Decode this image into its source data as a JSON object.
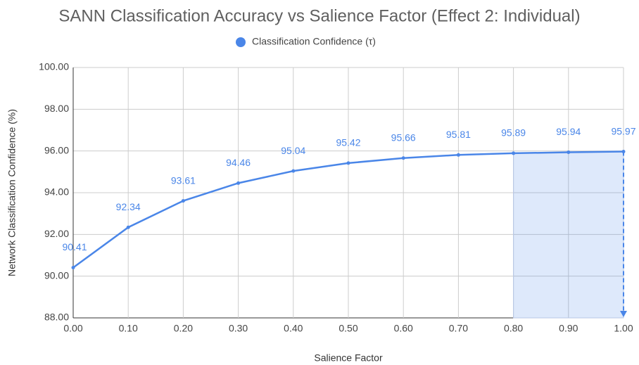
{
  "chart_data": {
    "type": "line",
    "title": "SANN Classification Accuracy vs Salience Factor (Effect 2: Individual)",
    "xlabel": "Salience Factor",
    "ylabel": "Network Classification Confidence (%)",
    "x": [
      0.0,
      0.1,
      0.2,
      0.3,
      0.4,
      0.5,
      0.6,
      0.7,
      0.8,
      0.9,
      1.0
    ],
    "series": [
      {
        "name": "Classification Confidence (τ)",
        "color": "#4a86e8",
        "values": [
          90.41,
          92.34,
          93.61,
          94.46,
          95.04,
          95.42,
          95.66,
          95.81,
          95.89,
          95.94,
          95.97
        ]
      }
    ],
    "xlim": [
      0,
      1
    ],
    "xticks": [
      {
        "value": 0,
        "label": "0.00"
      },
      {
        "value": 0.1,
        "label": "0.10"
      },
      {
        "value": 0.2,
        "label": "0.20"
      },
      {
        "value": 0.3,
        "label": "0.30"
      },
      {
        "value": 0.4,
        "label": "0.40"
      },
      {
        "value": 0.5,
        "label": "0.50"
      },
      {
        "value": 0.6,
        "label": "0.60"
      },
      {
        "value": 0.7,
        "label": "0.70"
      },
      {
        "value": 0.8,
        "label": "0.80"
      },
      {
        "value": 0.9,
        "label": "0.90"
      },
      {
        "value": 1,
        "label": "1.00"
      }
    ],
    "ylim": [
      88,
      100
    ],
    "yticks": [
      {
        "value": 88,
        "label": "88.00"
      },
      {
        "value": 90,
        "label": "90.00"
      },
      {
        "value": 92,
        "label": "92.00"
      },
      {
        "value": 94,
        "label": "94.00"
      },
      {
        "value": 96,
        "label": "96.00"
      },
      {
        "value": 98,
        "label": "98.00"
      },
      {
        "value": 100,
        "label": "100.00"
      }
    ],
    "grid": true,
    "legend": "top",
    "highlight": [
      0.8,
      1.0
    ]
  }
}
